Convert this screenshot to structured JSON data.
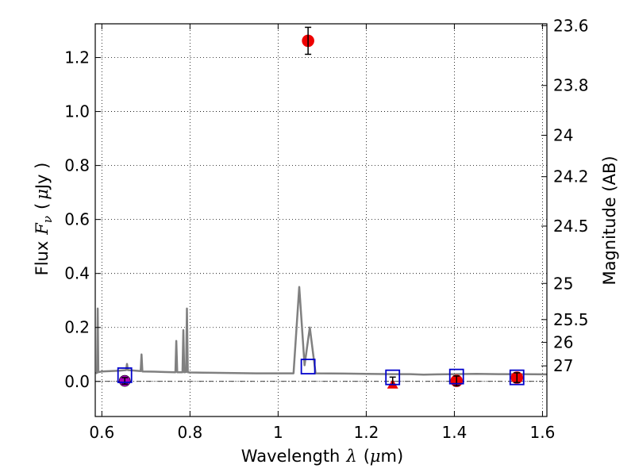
{
  "chart_data": {
    "type": "scatter",
    "xlabel": "Wavelength",
    "xlabel_symbol": "λ",
    "xlabel_unit_open": "(",
    "xlabel_unit_mu": "μ",
    "xlabel_unit_rest": "m)",
    "ylabel": "Flux",
    "ylabel_symbol": "F",
    "ylabel_subscript": "ν",
    "ylabel_unit_open": "(",
    "ylabel_unit_mu": "μ",
    "ylabel_unit_rest": "Jy )",
    "y2label": "Magnitude (AB)",
    "xlim": [
      0.585,
      1.61
    ],
    "ylim": [
      -0.13,
      1.325
    ],
    "grid": true,
    "xticks": [
      0.6,
      0.8,
      1.0,
      1.2,
      1.4,
      1.6
    ],
    "xtick_labels": [
      "0.6",
      "0.8",
      "1",
      "1.2",
      "1.4",
      "1.6"
    ],
    "yticks": [
      0.0,
      0.2,
      0.4,
      0.6,
      0.8,
      1.0,
      1.2
    ],
    "ytick_labels": [
      "0.0",
      "0.2",
      "0.4",
      "0.6",
      "0.8",
      "1.0",
      "1.2"
    ],
    "mag_ticks": [
      23.6,
      23.8,
      24,
      24.2,
      24.5,
      25,
      25.5,
      26,
      27
    ],
    "mag_tick_labels": [
      "23.6",
      "23.8",
      "24",
      "24.2",
      "24.5",
      "25",
      "25.5",
      "26",
      "27"
    ],
    "zero_line": 0.0,
    "model_spectrum": {
      "color": "#808080",
      "points": [
        [
          0.586,
          0.03
        ],
        [
          0.589,
          0.032
        ],
        [
          0.5905,
          0.27
        ],
        [
          0.592,
          0.034
        ],
        [
          0.6,
          0.037
        ],
        [
          0.62,
          0.038
        ],
        [
          0.64,
          0.04
        ],
        [
          0.655,
          0.042
        ],
        [
          0.657,
          0.065
        ],
        [
          0.659,
          0.042
        ],
        [
          0.688,
          0.038
        ],
        [
          0.69,
          0.1
        ],
        [
          0.692,
          0.037
        ],
        [
          0.72,
          0.036
        ],
        [
          0.74,
          0.035
        ],
        [
          0.767,
          0.034
        ],
        [
          0.769,
          0.15
        ],
        [
          0.771,
          0.034
        ],
        [
          0.783,
          0.034
        ],
        [
          0.785,
          0.19
        ],
        [
          0.787,
          0.034
        ],
        [
          0.791,
          0.035
        ],
        [
          0.793,
          0.27
        ],
        [
          0.795,
          0.034
        ],
        [
          0.8,
          0.033
        ],
        [
          0.85,
          0.032
        ],
        [
          0.9,
          0.031
        ],
        [
          0.95,
          0.03
        ],
        [
          1.0,
          0.03
        ],
        [
          1.035,
          0.03
        ],
        [
          1.048,
          0.35
        ],
        [
          1.06,
          0.06
        ],
        [
          1.072,
          0.2
        ],
        [
          1.085,
          0.03
        ],
        [
          1.15,
          0.029
        ],
        [
          1.2,
          0.028
        ],
        [
          1.26,
          0.027
        ],
        [
          1.3,
          0.027
        ],
        [
          1.33,
          0.025
        ],
        [
          1.36,
          0.026
        ],
        [
          1.4,
          0.027
        ],
        [
          1.45,
          0.028
        ],
        [
          1.5,
          0.027
        ],
        [
          1.55,
          0.027
        ],
        [
          1.61,
          0.026
        ]
      ]
    },
    "model_photometry": {
      "color": "#0000cc",
      "points": [
        [
          0.652,
          0.023
        ],
        [
          1.068,
          0.055
        ],
        [
          1.26,
          0.015
        ],
        [
          1.405,
          0.018
        ],
        [
          1.542,
          0.015
        ]
      ]
    },
    "observed": {
      "color": "#ee0000",
      "points": [
        {
          "x": 1.068,
          "y": 1.262,
          "err": 0.05
        },
        {
          "x": 1.405,
          "y": 0.002,
          "err": 0.018
        },
        {
          "x": 1.542,
          "y": 0.014,
          "err": 0.018
        }
      ]
    },
    "upper_limits": {
      "color": "#ee0000",
      "points": [
        {
          "x": 1.26,
          "y": -0.012,
          "err_low": 0.0,
          "err_high": 0.028
        }
      ]
    },
    "other_band": {
      "color": "#aa00bb",
      "points": [
        {
          "x": 0.652,
          "y": 0.002,
          "err": 0.012
        }
      ]
    }
  }
}
